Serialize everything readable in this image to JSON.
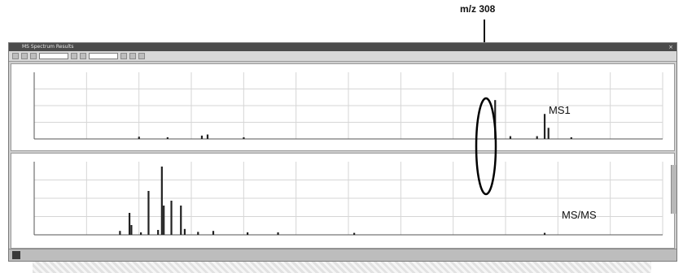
{
  "annotation": {
    "callout": "m/z 308",
    "ms1_label": "MS1",
    "msms_label": "MS/MS"
  },
  "window": {
    "title": "MS Spectrum Results",
    "toolbar_combo_1": "",
    "toolbar_combo_2": ""
  },
  "ms1": {
    "header": "",
    "ylabel_ticks": [
      "",
      "",
      "",
      "",
      "",
      ""
    ]
  },
  "msms": {
    "header": ""
  },
  "status": {
    "text": ""
  },
  "colors": {
    "window_bg": "#cfcfcf",
    "titlebar": "#4b4b4b",
    "peak": "#222222",
    "grid": "#d6d6d6"
  },
  "chart_data": [
    {
      "type": "bar",
      "title": "",
      "xlabel": "",
      "ylabel": "",
      "series": [
        {
          "values": [
            {
              "x": 95,
              "y": 4
            },
            {
              "x": 110,
              "y": 3
            },
            {
              "x": 128,
              "y": 6
            },
            {
              "x": 131,
              "y": 8
            },
            {
              "x": 150,
              "y": 3
            },
            {
              "x": 282,
              "y": 70
            },
            {
              "x": 290,
              "y": 5
            },
            {
              "x": 304,
              "y": 5
            },
            {
              "x": 308,
              "y": 45
            },
            {
              "x": 310,
              "y": 20
            },
            {
              "x": 322,
              "y": 3
            }
          ]
        }
      ],
      "xlim": [
        40,
        370
      ],
      "ylim": [
        0,
        120
      ]
    },
    {
      "type": "bar",
      "title": "",
      "xlabel": "",
      "ylabel": "",
      "series": [
        {
          "values": [
            {
              "x": 85,
              "y": 8
            },
            {
              "x": 90,
              "y": 45
            },
            {
              "x": 91,
              "y": 20
            },
            {
              "x": 96,
              "y": 5
            },
            {
              "x": 100,
              "y": 90
            },
            {
              "x": 105,
              "y": 10
            },
            {
              "x": 107,
              "y": 140
            },
            {
              "x": 108,
              "y": 60
            },
            {
              "x": 112,
              "y": 70
            },
            {
              "x": 117,
              "y": 60
            },
            {
              "x": 119,
              "y": 12
            },
            {
              "x": 126,
              "y": 6
            },
            {
              "x": 134,
              "y": 8
            },
            {
              "x": 152,
              "y": 5
            },
            {
              "x": 168,
              "y": 5
            },
            {
              "x": 208,
              "y": 4
            },
            {
              "x": 308,
              "y": 4
            }
          ]
        }
      ],
      "xlim": [
        40,
        370
      ],
      "ylim": [
        0,
        150
      ]
    }
  ]
}
